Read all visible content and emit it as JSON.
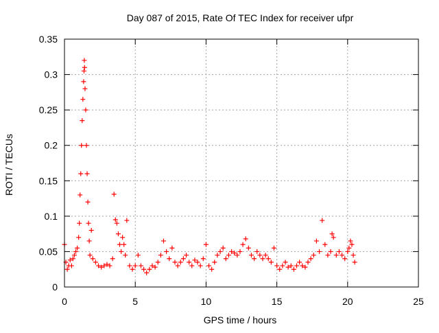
{
  "chart_data": {
    "type": "scatter",
    "title": "Day 087 of 2015, Rate Of TEC Index for receiver ufpr",
    "xlabel": "GPS time / hours",
    "ylabel": "ROTI / TECUs",
    "xlim": [
      0,
      25
    ],
    "ylim": [
      0,
      0.35
    ],
    "x_ticks": [
      0,
      5,
      10,
      15,
      20,
      25
    ],
    "y_ticks": [
      0,
      0.05,
      0.1,
      0.15,
      0.2,
      0.25,
      0.3,
      0.35
    ],
    "x_tick_labels": [
      "0",
      "5",
      "10",
      "15",
      "20",
      "25"
    ],
    "y_tick_labels": [
      "0",
      "0.05",
      "0.1",
      "0.15",
      "0.2",
      "0.25",
      "0.3",
      "0.35"
    ],
    "grid": true,
    "marker": "+",
    "marker_color": "#ff0000",
    "grid_color": "#a0a0a0",
    "series": [
      {
        "color": "#ff0000",
        "points": [
          [
            0.0,
            0.06
          ],
          [
            0.1,
            0.035
          ],
          [
            0.2,
            0.025
          ],
          [
            0.3,
            0.03
          ],
          [
            0.4,
            0.038
          ],
          [
            0.5,
            0.03
          ],
          [
            0.6,
            0.04
          ],
          [
            0.7,
            0.045
          ],
          [
            0.8,
            0.05
          ],
          [
            0.9,
            0.055
          ],
          [
            1.0,
            0.07
          ],
          [
            1.05,
            0.09
          ],
          [
            1.1,
            0.13
          ],
          [
            1.15,
            0.16
          ],
          [
            1.2,
            0.2
          ],
          [
            1.25,
            0.235
          ],
          [
            1.3,
            0.265
          ],
          [
            1.35,
            0.29
          ],
          [
            1.38,
            0.305
          ],
          [
            1.4,
            0.32
          ],
          [
            1.42,
            0.31
          ],
          [
            1.45,
            0.28
          ],
          [
            1.5,
            0.25
          ],
          [
            1.55,
            0.2
          ],
          [
            1.6,
            0.16
          ],
          [
            1.65,
            0.12
          ],
          [
            1.7,
            0.09
          ],
          [
            1.75,
            0.065
          ],
          [
            1.8,
            0.045
          ],
          [
            1.9,
            0.08
          ],
          [
            2.0,
            0.04
          ],
          [
            2.2,
            0.035
          ],
          [
            2.4,
            0.03
          ],
          [
            2.6,
            0.028
          ],
          [
            2.8,
            0.03
          ],
          [
            3.0,
            0.032
          ],
          [
            3.2,
            0.03
          ],
          [
            3.4,
            0.04
          ],
          [
            3.5,
            0.131
          ],
          [
            3.6,
            0.095
          ],
          [
            3.7,
            0.09
          ],
          [
            3.8,
            0.075
          ],
          [
            3.9,
            0.06
          ],
          [
            4.0,
            0.05
          ],
          [
            4.1,
            0.07
          ],
          [
            4.2,
            0.06
          ],
          [
            4.3,
            0.045
          ],
          [
            4.4,
            0.094
          ],
          [
            4.6,
            0.03
          ],
          [
            4.8,
            0.025
          ],
          [
            5.0,
            0.03
          ],
          [
            5.2,
            0.045
          ],
          [
            5.4,
            0.03
          ],
          [
            5.6,
            0.025
          ],
          [
            5.8,
            0.02
          ],
          [
            6.0,
            0.025
          ],
          [
            6.2,
            0.03
          ],
          [
            6.4,
            0.028
          ],
          [
            6.6,
            0.035
          ],
          [
            6.8,
            0.045
          ],
          [
            7.0,
            0.065
          ],
          [
            7.2,
            0.05
          ],
          [
            7.4,
            0.04
          ],
          [
            7.6,
            0.055
          ],
          [
            7.8,
            0.035
          ],
          [
            8.0,
            0.03
          ],
          [
            8.2,
            0.035
          ],
          [
            8.4,
            0.04
          ],
          [
            8.6,
            0.045
          ],
          [
            8.8,
            0.035
          ],
          [
            9.0,
            0.03
          ],
          [
            9.2,
            0.038
          ],
          [
            9.4,
            0.035
          ],
          [
            9.6,
            0.03
          ],
          [
            9.8,
            0.04
          ],
          [
            10.0,
            0.06
          ],
          [
            10.2,
            0.03
          ],
          [
            10.4,
            0.025
          ],
          [
            10.6,
            0.035
          ],
          [
            10.8,
            0.045
          ],
          [
            11.0,
            0.05
          ],
          [
            11.2,
            0.055
          ],
          [
            11.4,
            0.04
          ],
          [
            11.6,
            0.045
          ],
          [
            11.8,
            0.05
          ],
          [
            12.0,
            0.048
          ],
          [
            12.2,
            0.045
          ],
          [
            12.4,
            0.05
          ],
          [
            12.6,
            0.06
          ],
          [
            12.8,
            0.068
          ],
          [
            13.0,
            0.055
          ],
          [
            13.2,
            0.045
          ],
          [
            13.4,
            0.04
          ],
          [
            13.6,
            0.05
          ],
          [
            13.8,
            0.045
          ],
          [
            14.0,
            0.04
          ],
          [
            14.2,
            0.045
          ],
          [
            14.4,
            0.04
          ],
          [
            14.6,
            0.035
          ],
          [
            14.8,
            0.055
          ],
          [
            15.0,
            0.03
          ],
          [
            15.2,
            0.025
          ],
          [
            15.4,
            0.03
          ],
          [
            15.6,
            0.035
          ],
          [
            15.8,
            0.028
          ],
          [
            16.0,
            0.03
          ],
          [
            16.2,
            0.025
          ],
          [
            16.4,
            0.03
          ],
          [
            16.6,
            0.035
          ],
          [
            16.8,
            0.03
          ],
          [
            17.0,
            0.028
          ],
          [
            17.2,
            0.035
          ],
          [
            17.4,
            0.04
          ],
          [
            17.6,
            0.045
          ],
          [
            17.8,
            0.065
          ],
          [
            18.0,
            0.05
          ],
          [
            18.2,
            0.094
          ],
          [
            18.4,
            0.06
          ],
          [
            18.6,
            0.045
          ],
          [
            18.8,
            0.05
          ],
          [
            18.9,
            0.075
          ],
          [
            19.0,
            0.07
          ],
          [
            19.2,
            0.045
          ],
          [
            19.4,
            0.05
          ],
          [
            19.6,
            0.045
          ],
          [
            19.8,
            0.04
          ],
          [
            20.0,
            0.05
          ],
          [
            20.1,
            0.055
          ],
          [
            20.2,
            0.065
          ],
          [
            20.3,
            0.06
          ],
          [
            20.4,
            0.045
          ],
          [
            20.5,
            0.035
          ]
        ]
      }
    ]
  }
}
